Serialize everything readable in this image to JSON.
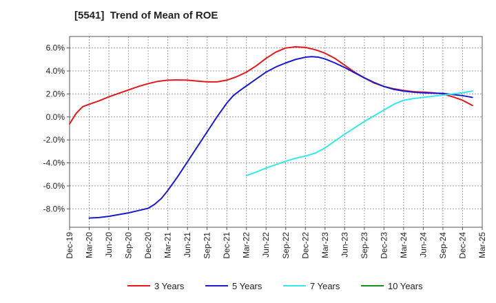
{
  "chart_data": {
    "type": "line",
    "title": "[5541]  Trend of Mean of ROE",
    "xlabel": "",
    "ylabel": "",
    "x_tick_labels": [
      "Dec-19",
      "Mar-20",
      "Jun-20",
      "Sep-20",
      "Dec-20",
      "Mar-21",
      "Jun-21",
      "Sep-21",
      "Dec-21",
      "Mar-22",
      "Jun-22",
      "Sep-22",
      "Dec-22",
      "Mar-23",
      "Jun-23",
      "Sep-23",
      "Dec-23",
      "Mar-24",
      "Jun-24",
      "Sep-24",
      "Dec-24",
      "Mar-25"
    ],
    "y_tick_values": [
      -8,
      -6,
      -4,
      -2,
      0,
      2,
      4,
      6
    ],
    "y_tick_labels": [
      "-8.0%",
      "-6.0%",
      "-4.0%",
      "-2.0%",
      "0.0%",
      "2.0%",
      "4.0%",
      "6.0%"
    ],
    "ylim": [
      -9.6,
      7.0
    ],
    "grid": true,
    "legend_position": "bottom",
    "series": [
      {
        "name": "3 Years",
        "color": "#e8161b",
        "points": [
          [
            0,
            -0.6
          ],
          [
            0.33,
            0.3
          ],
          [
            0.67,
            0.9
          ],
          [
            1,
            1.1
          ],
          [
            1.5,
            1.4
          ],
          [
            2,
            1.75
          ],
          [
            2.5,
            2.05
          ],
          [
            3,
            2.35
          ],
          [
            3.5,
            2.65
          ],
          [
            4,
            2.9
          ],
          [
            4.5,
            3.1
          ],
          [
            5,
            3.2
          ],
          [
            5.5,
            3.22
          ],
          [
            6,
            3.2
          ],
          [
            6.5,
            3.12
          ],
          [
            7,
            3.05
          ],
          [
            7.5,
            3.05
          ],
          [
            8,
            3.2
          ],
          [
            8.5,
            3.5
          ],
          [
            9,
            3.9
          ],
          [
            9.5,
            4.45
          ],
          [
            10,
            5.1
          ],
          [
            10.5,
            5.65
          ],
          [
            11,
            6.0
          ],
          [
            11.5,
            6.1
          ],
          [
            12,
            6.05
          ],
          [
            12.5,
            5.85
          ],
          [
            13,
            5.55
          ],
          [
            13.5,
            5.1
          ],
          [
            14,
            4.5
          ],
          [
            14.5,
            3.9
          ],
          [
            15,
            3.4
          ],
          [
            15.5,
            2.95
          ],
          [
            16,
            2.65
          ],
          [
            16.5,
            2.45
          ],
          [
            17,
            2.3
          ],
          [
            17.5,
            2.2
          ],
          [
            18,
            2.15
          ],
          [
            18.5,
            2.1
          ],
          [
            19,
            2.0
          ],
          [
            19.5,
            1.75
          ],
          [
            20,
            1.45
          ],
          [
            20.5,
            1.0
          ]
        ]
      },
      {
        "name": "5 Years",
        "color": "#1a1acc",
        "points": [
          [
            1,
            -8.8
          ],
          [
            1.5,
            -8.75
          ],
          [
            2,
            -8.65
          ],
          [
            2.5,
            -8.5
          ],
          [
            3,
            -8.35
          ],
          [
            3.5,
            -8.15
          ],
          [
            4,
            -7.95
          ],
          [
            4.33,
            -7.6
          ],
          [
            4.67,
            -7.1
          ],
          [
            5,
            -6.4
          ],
          [
            5.5,
            -5.2
          ],
          [
            6,
            -3.9
          ],
          [
            6.5,
            -2.6
          ],
          [
            7,
            -1.3
          ],
          [
            7.5,
            0.0
          ],
          [
            8,
            1.2
          ],
          [
            8.33,
            1.85
          ],
          [
            8.67,
            2.3
          ],
          [
            9,
            2.7
          ],
          [
            9.5,
            3.3
          ],
          [
            10,
            3.9
          ],
          [
            10.5,
            4.35
          ],
          [
            11,
            4.7
          ],
          [
            11.5,
            5.0
          ],
          [
            12,
            5.2
          ],
          [
            12.33,
            5.25
          ],
          [
            12.67,
            5.2
          ],
          [
            13,
            5.05
          ],
          [
            13.5,
            4.7
          ],
          [
            14,
            4.3
          ],
          [
            14.5,
            3.85
          ],
          [
            15,
            3.4
          ],
          [
            15.5,
            3.0
          ],
          [
            16,
            2.65
          ],
          [
            16.5,
            2.4
          ],
          [
            17,
            2.25
          ],
          [
            17.5,
            2.15
          ],
          [
            18,
            2.1
          ],
          [
            18.5,
            2.07
          ],
          [
            19,
            2.05
          ],
          [
            19.5,
            1.95
          ],
          [
            20,
            1.85
          ],
          [
            20.5,
            1.7
          ]
        ]
      },
      {
        "name": "7 Years",
        "color": "#33e8ee",
        "points": [
          [
            9,
            -5.1
          ],
          [
            9.5,
            -4.8
          ],
          [
            10,
            -4.45
          ],
          [
            10.5,
            -4.15
          ],
          [
            11,
            -3.85
          ],
          [
            11.5,
            -3.6
          ],
          [
            12,
            -3.4
          ],
          [
            12.5,
            -3.15
          ],
          [
            13,
            -2.7
          ],
          [
            13.5,
            -2.1
          ],
          [
            14,
            -1.5
          ],
          [
            14.5,
            -0.95
          ],
          [
            15,
            -0.4
          ],
          [
            15.5,
            0.1
          ],
          [
            16,
            0.6
          ],
          [
            16.5,
            1.1
          ],
          [
            17,
            1.45
          ],
          [
            17.5,
            1.6
          ],
          [
            18,
            1.7
          ],
          [
            18.5,
            1.8
          ],
          [
            19,
            1.9
          ],
          [
            19.5,
            2.0
          ],
          [
            20,
            2.1
          ],
          [
            20.5,
            2.25
          ]
        ]
      },
      {
        "name": "10 Years",
        "color": "#1e8a1e",
        "points": []
      }
    ]
  }
}
